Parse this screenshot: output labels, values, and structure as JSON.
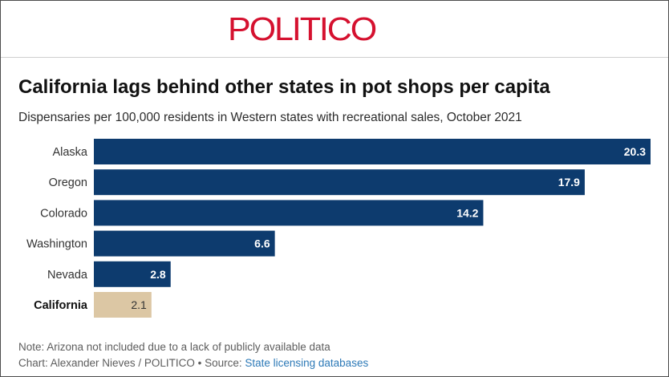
{
  "brand": {
    "name": "POLITICO",
    "color": "#d5112f"
  },
  "chart_data": {
    "type": "bar",
    "orientation": "horizontal",
    "title": "California lags behind other states in pot shops per capita",
    "subtitle": "Dispensaries per 100,000 residents in Western states with recreational sales, October 2021",
    "categories": [
      "Alaska",
      "Oregon",
      "Colorado",
      "Washington",
      "Nevada",
      "California"
    ],
    "values": [
      20.3,
      17.9,
      14.2,
      6.6,
      2.8,
      2.1
    ],
    "value_labels": [
      "20.3",
      "17.9",
      "14.2",
      "6.6",
      "2.8",
      "2.1"
    ],
    "highlight_category": "California",
    "colors": {
      "default_bar": "#0d3b6e",
      "highlight_bar": "#dcc7a4",
      "default_value_label": "#ffffff",
      "highlight_value_label": "#333333",
      "category_label": "#333333",
      "highlight_category_label": "#111111"
    },
    "xlim": [
      0,
      20.3
    ],
    "grid": false,
    "legend": "none"
  },
  "footer": {
    "note": "Note: Arizona not included due to a lack of publicly available data",
    "credit_prefix": "Chart: Alexander Nieves / POLITICO • Source: ",
    "source_link": "State licensing databases"
  }
}
